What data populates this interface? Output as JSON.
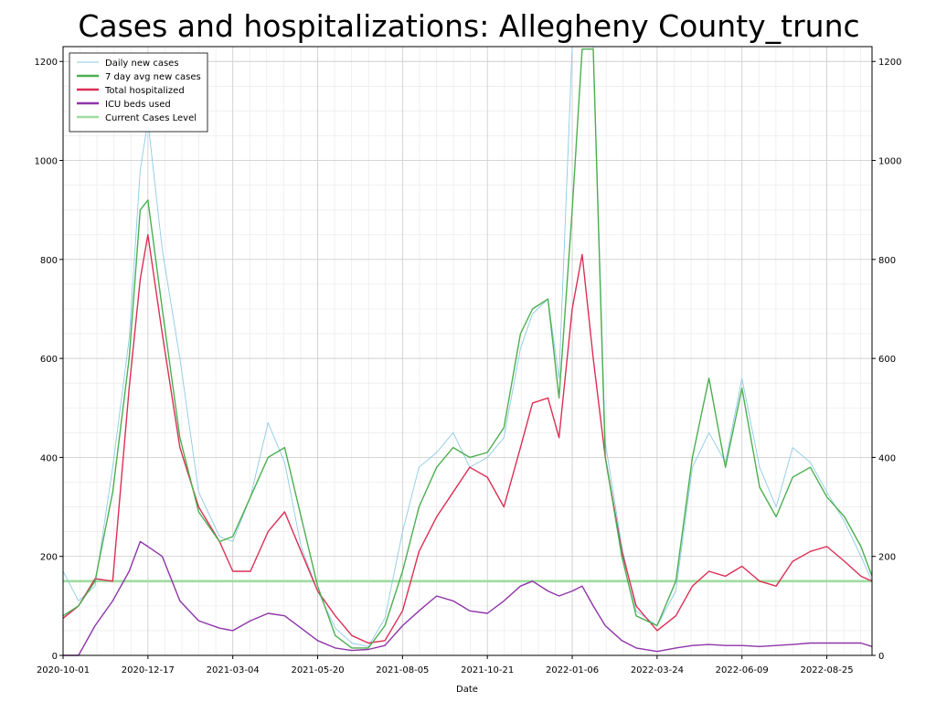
{
  "chart_data": {
    "type": "line",
    "title": "Cases and hospitalizations: Allegheny County_trunc",
    "xlabel": "Date",
    "ylabel": "",
    "xlim": [
      "2020-10-01",
      "2022-10-05"
    ],
    "ylim": [
      0,
      1230
    ],
    "x_ticks": [
      "2020-10-01",
      "2020-12-17",
      "2021-03-04",
      "2021-05-20",
      "2021-08-05",
      "2021-10-21",
      "2022-01-06",
      "2022-03-24",
      "2022-06-09",
      "2022-08-25"
    ],
    "y_ticks": [
      0,
      200,
      400,
      600,
      800,
      1000,
      1200
    ],
    "grid": true,
    "dual_axis_mirrored": true,
    "legend_position": "top-left",
    "series": [
      {
        "name": "Daily new cases",
        "color": "#8ecae6",
        "x": [
          "2020-10-01",
          "2020-10-15",
          "2020-10-30",
          "2020-11-15",
          "2020-11-30",
          "2020-12-10",
          "2020-12-17",
          "2020-12-30",
          "2021-01-15",
          "2021-02-01",
          "2021-02-20",
          "2021-03-04",
          "2021-03-20",
          "2021-04-05",
          "2021-04-20",
          "2021-05-05",
          "2021-05-20",
          "2021-06-05",
          "2021-06-20",
          "2021-07-05",
          "2021-07-20",
          "2021-08-05",
          "2021-08-20",
          "2021-09-05",
          "2021-09-20",
          "2021-10-05",
          "2021-10-21",
          "2021-11-05",
          "2021-11-20",
          "2021-12-01",
          "2021-12-15",
          "2021-12-25",
          "2022-01-06",
          "2022-01-15",
          "2022-01-25",
          "2022-02-05",
          "2022-02-20",
          "2022-03-05",
          "2022-03-24",
          "2022-04-10",
          "2022-04-25",
          "2022-05-10",
          "2022-05-25",
          "2022-06-09",
          "2022-06-25",
          "2022-07-10",
          "2022-07-25",
          "2022-08-10",
          "2022-08-25",
          "2022-09-10",
          "2022-09-25",
          "2022-10-05"
        ],
        "values": [
          170,
          110,
          140,
          380,
          640,
          980,
          1080,
          820,
          600,
          330,
          240,
          230,
          320,
          470,
          390,
          220,
          130,
          55,
          25,
          18,
          75,
          250,
          380,
          410,
          450,
          380,
          400,
          440,
          620,
          690,
          720,
          560,
          1230,
          1230,
          1230,
          430,
          220,
          90,
          60,
          130,
          380,
          450,
          390,
          560,
          380,
          300,
          420,
          390,
          330,
          270,
          200,
          150
        ]
      },
      {
        "name": "7 day avg new cases",
        "color": "#4caf50",
        "x": [
          "2020-10-01",
          "2020-10-15",
          "2020-10-30",
          "2020-11-15",
          "2020-11-30",
          "2020-12-10",
          "2020-12-17",
          "2020-12-30",
          "2021-01-15",
          "2021-02-01",
          "2021-02-20",
          "2021-03-04",
          "2021-03-20",
          "2021-04-05",
          "2021-04-20",
          "2021-05-05",
          "2021-05-20",
          "2021-06-05",
          "2021-06-20",
          "2021-07-05",
          "2021-07-20",
          "2021-08-05",
          "2021-08-20",
          "2021-09-05",
          "2021-09-20",
          "2021-10-05",
          "2021-10-21",
          "2021-11-05",
          "2021-11-20",
          "2021-12-01",
          "2021-12-15",
          "2021-12-25",
          "2022-01-06",
          "2022-01-15",
          "2022-01-25",
          "2022-02-05",
          "2022-02-20",
          "2022-03-05",
          "2022-03-24",
          "2022-04-10",
          "2022-04-25",
          "2022-05-10",
          "2022-05-25",
          "2022-06-09",
          "2022-06-25",
          "2022-07-10",
          "2022-07-25",
          "2022-08-10",
          "2022-08-25",
          "2022-09-10",
          "2022-09-25",
          "2022-10-05"
        ],
        "values": [
          80,
          100,
          150,
          330,
          600,
          900,
          920,
          700,
          440,
          290,
          230,
          240,
          320,
          400,
          420,
          280,
          140,
          40,
          15,
          15,
          60,
          170,
          300,
          380,
          420,
          400,
          410,
          460,
          650,
          700,
          720,
          520,
          900,
          1225,
          1225,
          400,
          200,
          80,
          60,
          150,
          400,
          560,
          380,
          540,
          340,
          280,
          360,
          380,
          320,
          280,
          220,
          160
        ]
      },
      {
        "name": "Total hospitalized",
        "color": "#dc2f55",
        "x": [
          "2020-10-01",
          "2020-10-15",
          "2020-10-30",
          "2020-11-15",
          "2020-11-30",
          "2020-12-10",
          "2020-12-17",
          "2020-12-30",
          "2021-01-15",
          "2021-02-01",
          "2021-02-20",
          "2021-03-04",
          "2021-03-20",
          "2021-04-05",
          "2021-04-20",
          "2021-05-05",
          "2021-05-20",
          "2021-06-05",
          "2021-06-20",
          "2021-07-05",
          "2021-07-20",
          "2021-08-05",
          "2021-08-20",
          "2021-09-05",
          "2021-09-20",
          "2021-10-05",
          "2021-10-21",
          "2021-11-05",
          "2021-11-20",
          "2021-12-01",
          "2021-12-15",
          "2021-12-25",
          "2022-01-06",
          "2022-01-15",
          "2022-01-25",
          "2022-02-05",
          "2022-02-20",
          "2022-03-05",
          "2022-03-24",
          "2022-04-10",
          "2022-04-25",
          "2022-05-10",
          "2022-05-25",
          "2022-06-09",
          "2022-06-25",
          "2022-07-10",
          "2022-07-25",
          "2022-08-10",
          "2022-08-25",
          "2022-09-10",
          "2022-09-25",
          "2022-10-05"
        ],
        "values": [
          75,
          100,
          155,
          150,
          540,
          760,
          850,
          650,
          420,
          300,
          230,
          170,
          170,
          250,
          290,
          210,
          130,
          80,
          40,
          25,
          30,
          90,
          210,
          280,
          330,
          380,
          360,
          300,
          420,
          510,
          520,
          440,
          700,
          810,
          600,
          400,
          210,
          100,
          50,
          80,
          140,
          170,
          160,
          180,
          150,
          140,
          190,
          210,
          220,
          190,
          160,
          150
        ]
      },
      {
        "name": "ICU beds used",
        "color": "#8e35a8",
        "x": [
          "2020-10-01",
          "2020-10-15",
          "2020-10-30",
          "2020-11-15",
          "2020-11-30",
          "2020-12-10",
          "2020-12-17",
          "2020-12-30",
          "2021-01-15",
          "2021-02-01",
          "2021-02-20",
          "2021-03-04",
          "2021-03-20",
          "2021-04-05",
          "2021-04-20",
          "2021-05-05",
          "2021-05-20",
          "2021-06-05",
          "2021-06-20",
          "2021-07-05",
          "2021-07-20",
          "2021-08-05",
          "2021-08-20",
          "2021-09-05",
          "2021-09-20",
          "2021-10-05",
          "2021-10-21",
          "2021-11-05",
          "2021-11-20",
          "2021-12-01",
          "2021-12-15",
          "2021-12-25",
          "2022-01-06",
          "2022-01-15",
          "2022-01-25",
          "2022-02-05",
          "2022-02-20",
          "2022-03-05",
          "2022-03-24",
          "2022-04-10",
          "2022-04-25",
          "2022-05-10",
          "2022-05-25",
          "2022-06-09",
          "2022-06-25",
          "2022-07-10",
          "2022-07-25",
          "2022-08-10",
          "2022-08-25",
          "2022-09-10",
          "2022-09-25",
          "2022-10-05"
        ],
        "values": [
          0,
          0,
          60,
          110,
          170,
          230,
          220,
          200,
          110,
          70,
          55,
          50,
          70,
          85,
          80,
          55,
          30,
          15,
          10,
          12,
          20,
          60,
          90,
          120,
          110,
          90,
          85,
          110,
          140,
          150,
          130,
          120,
          130,
          140,
          100,
          60,
          30,
          15,
          8,
          15,
          20,
          22,
          20,
          20,
          18,
          20,
          22,
          25,
          25,
          25,
          25,
          18
        ]
      },
      {
        "name": "Current Cases Level",
        "color": "#9fdc9f",
        "x": [
          "2020-10-01",
          "2022-10-05"
        ],
        "values": [
          150,
          150
        ]
      }
    ]
  }
}
